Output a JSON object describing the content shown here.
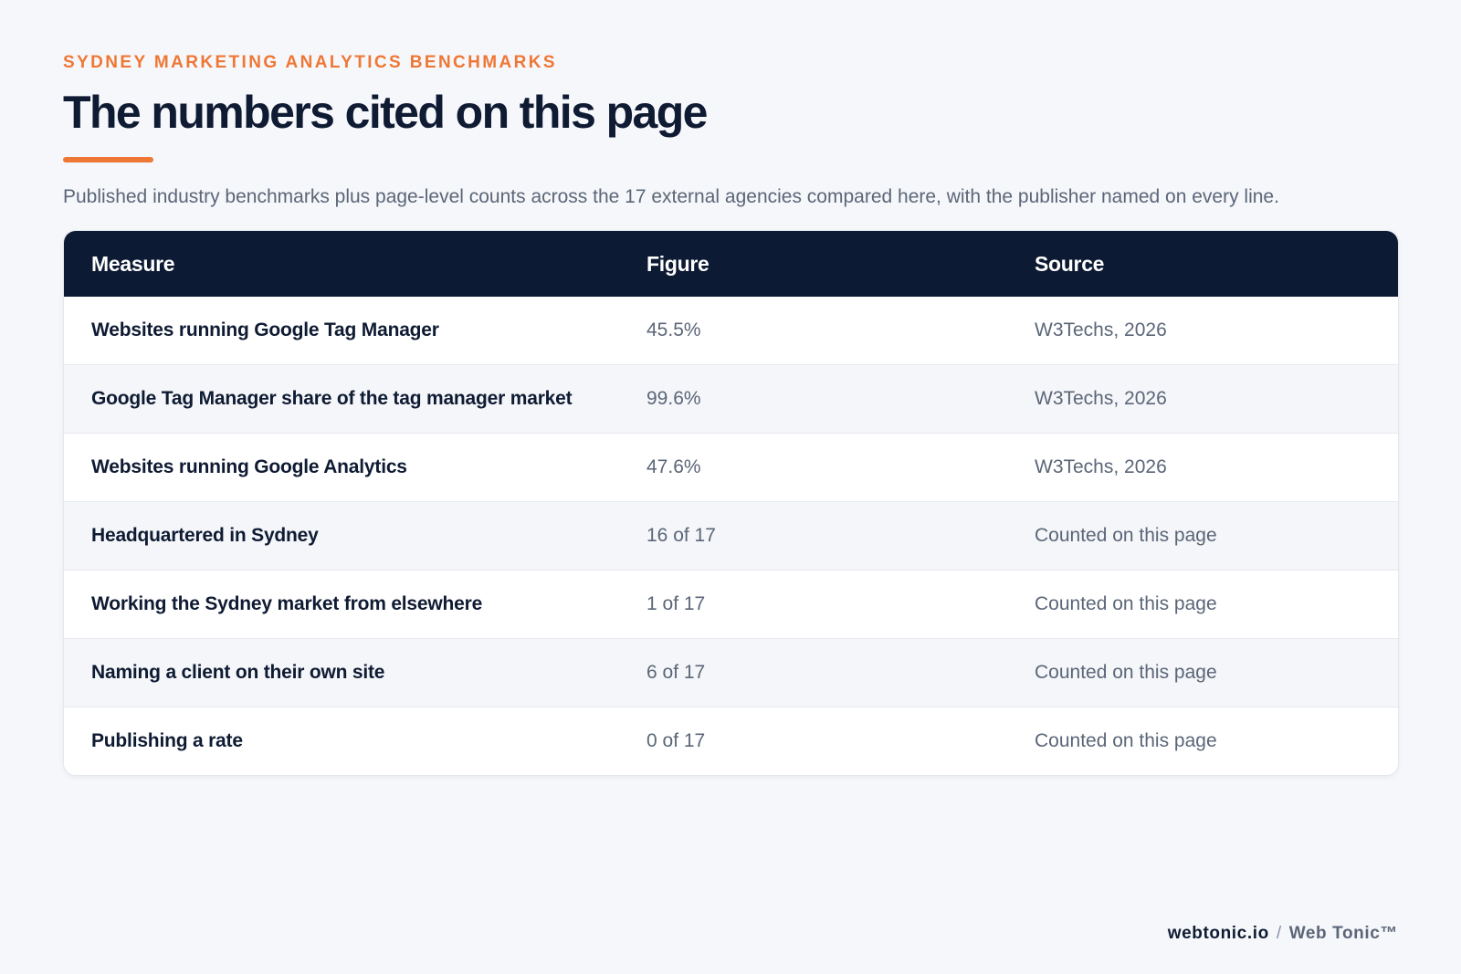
{
  "header": {
    "eyebrow": "SYDNEY MARKETING ANALYTICS BENCHMARKS",
    "title": "The numbers cited on this page",
    "subtitle": "Published industry benchmarks plus page-level counts across the 17 external agencies compared here, with the publisher named on every line."
  },
  "table": {
    "columns": [
      "Measure",
      "Figure",
      "Source"
    ],
    "rows": [
      {
        "measure": "Websites running Google Tag Manager",
        "figure": "45.5%",
        "source": "W3Techs, 2026"
      },
      {
        "measure": "Google Tag Manager share of the tag manager market",
        "figure": "99.6%",
        "source": "W3Techs, 2026"
      },
      {
        "measure": "Websites running Google Analytics",
        "figure": "47.6%",
        "source": "W3Techs, 2026"
      },
      {
        "measure": "Headquartered in Sydney",
        "figure": "16 of 17",
        "source": "Counted on this page"
      },
      {
        "measure": "Working the Sydney market from elsewhere",
        "figure": "1 of 17",
        "source": "Counted on this page"
      },
      {
        "measure": "Naming a client on their own site",
        "figure": "6 of 17",
        "source": "Counted on this page"
      },
      {
        "measure": "Publishing a rate",
        "figure": "0 of 17",
        "source": "Counted on this page"
      }
    ]
  },
  "footer": {
    "domain": "webtonic.io",
    "separator": "/",
    "brand": "Web Tonic™"
  },
  "colors": {
    "accent": "#ef7735",
    "header_bg": "#0d1a33",
    "title_text": "#0f1b33",
    "muted_text": "#5b6678",
    "page_bg": "#f5f7fa"
  }
}
